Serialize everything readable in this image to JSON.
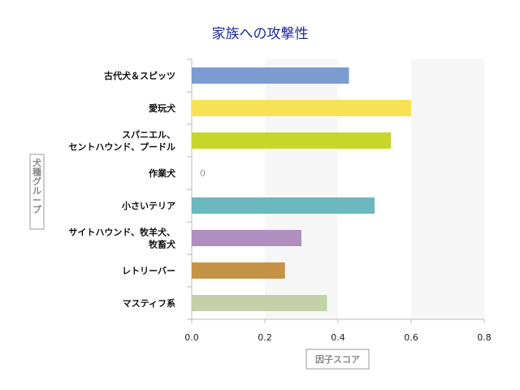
{
  "chart_data": {
    "type": "bar",
    "orientation": "horizontal",
    "title": "家族への攻撃性",
    "xlabel": "因子スコア",
    "ylabel": "犬種グループ",
    "categories": [
      [
        "古代犬＆スピッツ"
      ],
      [
        "愛玩犬"
      ],
      [
        "スパニエル、",
        "セントハウンド、プードル"
      ],
      [
        "作業犬"
      ],
      [
        "小さいテリア"
      ],
      [
        "サイトハウンド、牧羊犬、",
        "牧畜犬"
      ],
      [
        "レトリーバー"
      ],
      [
        "マスティフ系"
      ]
    ],
    "values": [
      0.43,
      0.6,
      0.545,
      0,
      0.5,
      0.3,
      0.255,
      0.37
    ],
    "bar_colors": [
      "#7b9bd1",
      "#f7e154",
      "#c8d62a",
      "#cccccc",
      "#6bb8bd",
      "#ae8fc0",
      "#c69346",
      "#c4d1a8"
    ],
    "data_labels": [
      "",
      "",
      "",
      "0",
      "",
      "",
      "",
      ""
    ],
    "xlim": [
      0,
      0.8
    ],
    "xticks": [
      "0.0",
      "0.2",
      "0.4",
      "0.6",
      "0.8"
    ],
    "tick_values": [
      0,
      0.2,
      0.4,
      0.6,
      0.8
    ],
    "grid": "alternating-bands",
    "title_color": "#1f2aa0"
  }
}
